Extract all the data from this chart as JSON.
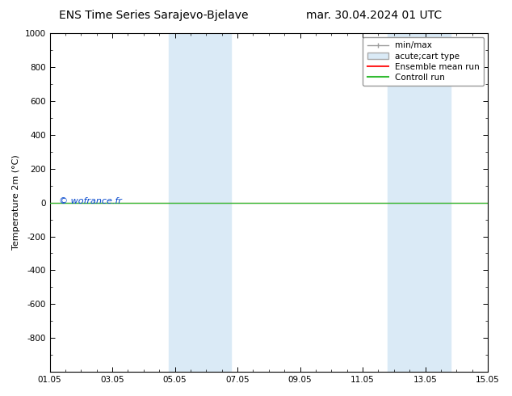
{
  "title_left": "ENS Time Series Sarajevo-Bjelave",
  "title_right": "mar. 30.04.2024 01 UTC",
  "ylabel": "Temperature 2m (°C)",
  "ylim_top": -1000,
  "ylim_bottom": 1000,
  "yticks": [
    -800,
    -600,
    -400,
    -200,
    0,
    200,
    400,
    600,
    800,
    1000
  ],
  "xlim_left": 0,
  "xlim_right": 14,
  "xtick_positions": [
    0,
    2,
    4,
    6,
    8,
    10,
    12,
    14
  ],
  "xtick_labels": [
    "01.05",
    "03.05",
    "05.05",
    "07.05",
    "09.05",
    "11.05",
    "13.05",
    "15.05"
  ],
  "shaded_bands": [
    {
      "x_start": 3.8,
      "x_end": 5.8
    },
    {
      "x_start": 10.8,
      "x_end": 12.8
    }
  ],
  "shade_color": "#daeaf6",
  "control_run_y": 0,
  "control_run_color": "#33bb33",
  "ensemble_mean_color": "#ff2222",
  "watermark": "© wofrance.fr",
  "watermark_color": "#0044cc",
  "bg_color": "#ffffff",
  "legend_items": [
    "min/max",
    "acute;cart type",
    "Ensemble mean run",
    "Controll run"
  ],
  "minmax_color": "#999999",
  "shade_legend_color": "#daeaf6",
  "title_fontsize": 10,
  "axis_fontsize": 8,
  "tick_fontsize": 7.5,
  "legend_fontsize": 7.5
}
